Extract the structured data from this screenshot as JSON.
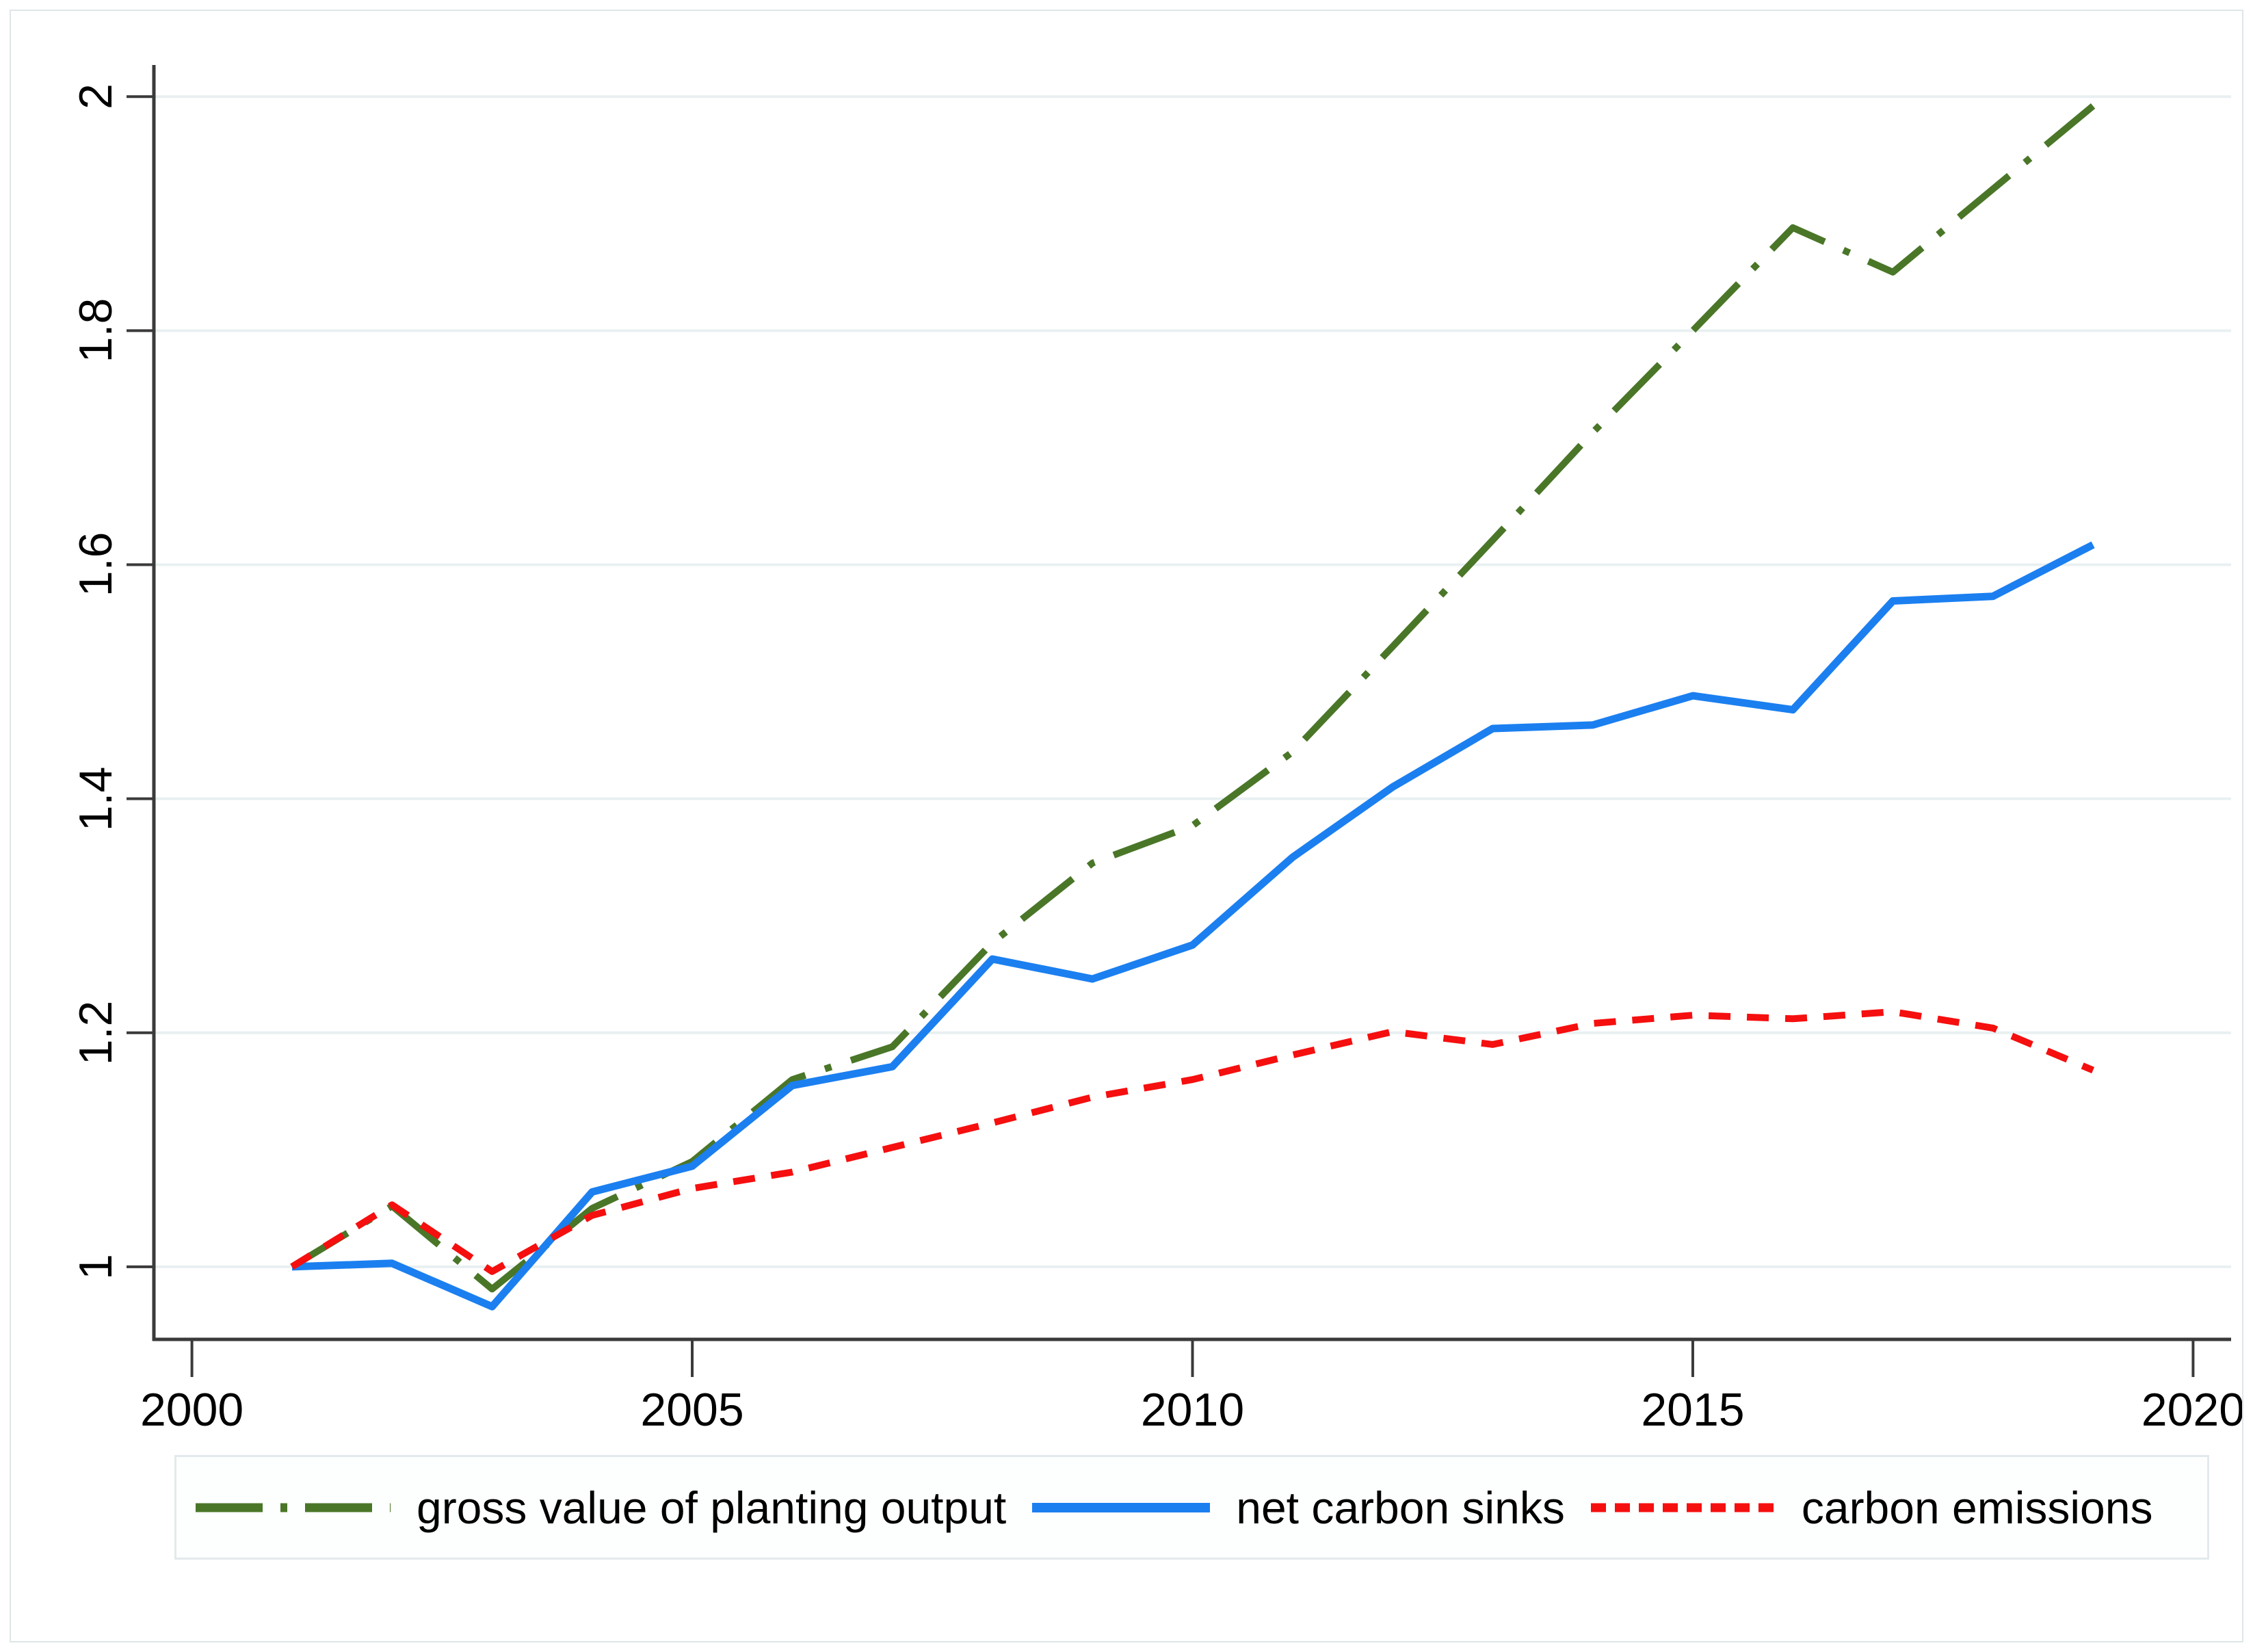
{
  "figure": {
    "background": "#ffffff",
    "border_color": "#dfe6e8"
  },
  "chart_data": {
    "type": "line",
    "title": "",
    "xlabel": "",
    "ylabel": "",
    "x": [
      2001,
      2002,
      2003,
      2004,
      2005,
      2006,
      2007,
      2008,
      2009,
      2010,
      2011,
      2012,
      2013,
      2014,
      2015,
      2016,
      2017,
      2018,
      2019
    ],
    "series": [
      {
        "name": "gross value of planting output",
        "color": "#4a7628",
        "style": "dash-dot",
        "values": [
          1.0,
          1.052,
          0.981,
          1.05,
          1.09,
          1.16,
          1.188,
          1.277,
          1.345,
          1.377,
          1.44,
          1.53,
          1.621,
          1.713,
          1.8,
          1.888,
          1.85,
          1.921,
          1.992
        ]
      },
      {
        "name": "net carbon sinks",
        "color": "#1b7ff0",
        "style": "solid",
        "values": [
          1.0,
          1.003,
          0.966,
          1.064,
          1.086,
          1.155,
          1.171,
          1.263,
          1.246,
          1.275,
          1.35,
          1.41,
          1.46,
          1.463,
          1.488,
          1.476,
          1.569,
          1.573,
          1.617
        ]
      },
      {
        "name": "carbon emissions",
        "color": "#f50f0f",
        "style": "dashed",
        "values": [
          1.0,
          1.053,
          0.996,
          1.044,
          1.067,
          1.081,
          1.102,
          1.123,
          1.145,
          1.16,
          1.181,
          1.201,
          1.19,
          1.208,
          1.215,
          1.212,
          1.218,
          1.204,
          1.168
        ]
      }
    ],
    "xlim": [
      1999.62,
      2020.38
    ],
    "ylim": [
      0.938,
      2.027
    ],
    "xticks": [
      2000,
      2005,
      2010,
      2015,
      2020
    ],
    "xtick_labels": [
      "2000",
      "2005",
      "2010",
      "2015",
      "2020"
    ],
    "yticks": [
      1,
      1.2,
      1.4,
      1.6,
      1.8,
      2
    ],
    "ytick_labels": [
      "1",
      "1.2",
      "1.4",
      "1.6",
      "1.8",
      "2"
    ],
    "grid": "horizontal",
    "gridline_color": "#e9f0f2",
    "axis_color": "#3a3a3a",
    "tick_color": "#3a3a3a",
    "text_color": "#000000",
    "legend_position": "bottom"
  }
}
